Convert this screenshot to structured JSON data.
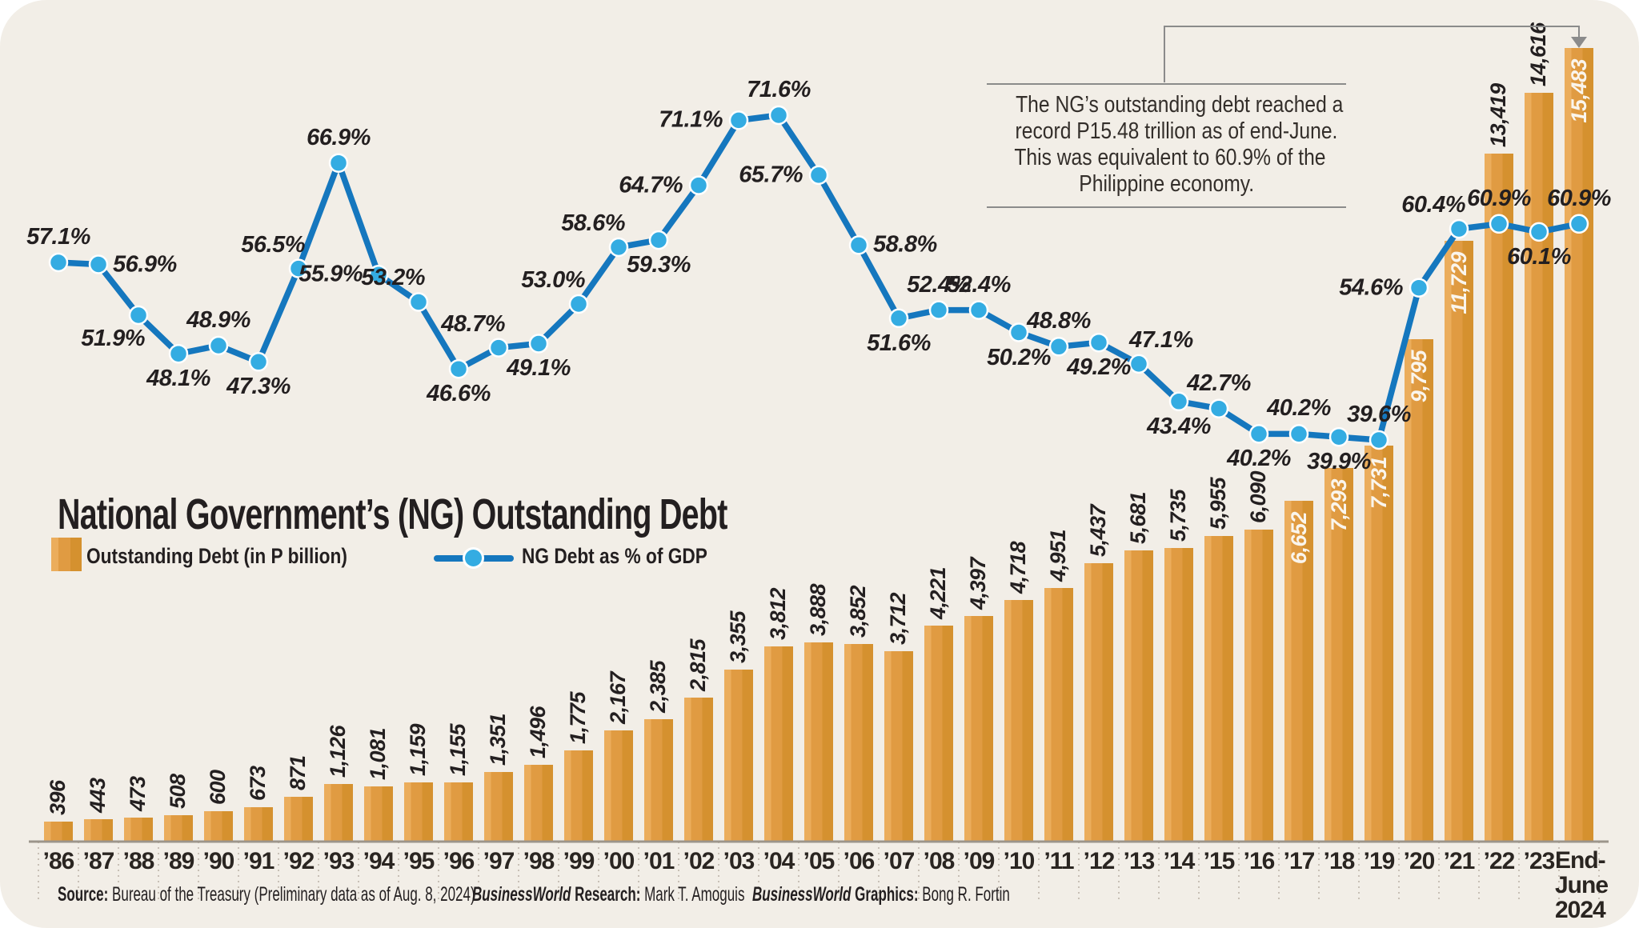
{
  "card": {
    "title": "National Government’s (NG) Outstanding Debt",
    "legend": {
      "bars": "Outstanding Debt (in P billion)",
      "line": "NG Debt as % of GDP"
    },
    "callout": {
      "lines": [
        "The NG’s outstanding debt reached a",
        "record P15.48 trillion as of end-June.",
        "This was equivalent to 60.9% of the",
        "Philippine economy."
      ]
    },
    "footer": {
      "source_label": "Source:",
      "source_text": " Bureau of the Treasury (Preliminary data as of Aug. 8, 2024)",
      "research_brand": "BusinessWorld",
      "research_label": " Research:",
      "research_name": " Mark T. Amoguis",
      "graphics_brand": "BusinessWorld",
      "graphics_label": " Graphics:",
      "graphics_name": " Bong R. Fortin"
    }
  },
  "chart_data": {
    "type": "bar+line",
    "title": "National Government’s (NG) Outstanding Debt",
    "categories": [
      "’86",
      "’87",
      "’88",
      "’89",
      "’90",
      "’91",
      "’92",
      "’93",
      "’94",
      "’95",
      "’96",
      "’97",
      "’98",
      "’99",
      "’00",
      "’01",
      "’02",
      "’03",
      "’04",
      "’05",
      "’06",
      "’07",
      "’08",
      "’09",
      "’10",
      "’11",
      "’12",
      "’13",
      "’14",
      "’15",
      "’16",
      "’17",
      "’18",
      "’19",
      "’20",
      "’21",
      "’22",
      "’23",
      "End-June 2024"
    ],
    "last_label_lines": [
      "End-",
      "June",
      "2024"
    ],
    "series": [
      {
        "name": "Outstanding Debt (in P billion)",
        "type": "bar",
        "values": [
          396,
          443,
          473,
          508,
          600,
          673,
          871,
          1126,
          1081,
          1159,
          1155,
          1351,
          1496,
          1775,
          2167,
          2385,
          2815,
          3355,
          3812,
          3888,
          3852,
          3712,
          4221,
          4397,
          4718,
          4951,
          5437,
          5681,
          5735,
          5955,
          6090,
          6652,
          7293,
          7731,
          9795,
          11729,
          13419,
          14616,
          15483
        ],
        "labels": [
          "396",
          "443",
          "473",
          "508",
          "600",
          "673",
          "871",
          "1,126",
          "1,081",
          "1,159",
          "1,155",
          "1,351",
          "1,496",
          "1,775",
          "2,167",
          "2,385",
          "2,815",
          "3,355",
          "3,812",
          "3,888",
          "3,852",
          "3,712",
          "4,221",
          "4,397",
          "4,718",
          "4,951",
          "5,437",
          "5,681",
          "5,735",
          "5,955",
          "6,090",
          "6,652",
          "7,293",
          "7,731",
          "9,795",
          "11,729",
          "13,419",
          "14,616",
          "15,483"
        ],
        "label_inside_white": [
          31,
          32,
          33,
          34,
          35,
          38
        ]
      },
      {
        "name": "NG Debt as % of GDP",
        "type": "line",
        "values": [
          57.1,
          56.9,
          51.9,
          48.1,
          48.9,
          47.3,
          56.5,
          66.9,
          55.9,
          53.2,
          46.6,
          48.7,
          49.1,
          53.0,
          58.6,
          59.3,
          64.7,
          71.1,
          71.6,
          65.7,
          58.8,
          51.6,
          52.4,
          52.4,
          50.2,
          48.8,
          49.2,
          47.1,
          43.4,
          42.7,
          40.2,
          40.2,
          39.9,
          39.6,
          54.6,
          60.4,
          60.9,
          60.1,
          60.9
        ],
        "labels": [
          "57.1%",
          "56.9%",
          "51.9%",
          "48.1%",
          "48.9%",
          "47.3%",
          "56.5%",
          "66.9%",
          "55.9%",
          "53.2%",
          "46.6%",
          "48.7%",
          "49.1%",
          "53.0%",
          "58.6%",
          "59.3%",
          "64.7%",
          "71.1%",
          "71.6%",
          "65.7%",
          "58.8%",
          "51.6%",
          "52.4%",
          "52.4%",
          "50.2%",
          "48.8%",
          "49.2%",
          "47.1%",
          "43.4%",
          "42.7%",
          "40.2%",
          "40.2%",
          "39.9%",
          "39.6%",
          "54.6%",
          "60.4%",
          "60.9%",
          "60.1%",
          "60.9%"
        ],
        "label_pos": [
          "above",
          "right",
          "below-left",
          "below",
          "above",
          "below",
          "above-left",
          "above",
          "left",
          "above-left",
          "below",
          "above-left",
          "below",
          "above-left",
          "above-left",
          "below",
          "left",
          "left",
          "above",
          "left",
          "right",
          "below",
          "above",
          "above",
          "below",
          "above",
          "below",
          "above-right",
          "below",
          "above",
          "below",
          "above",
          "below",
          "above",
          "left",
          "above-left",
          "above",
          "below",
          "above"
        ]
      }
    ],
    "colors": {
      "background": "#F2EEE7",
      "bar_light": "#EBAD5C",
      "bar_mid": "#E09B42",
      "bar_dark": "#D5912F",
      "line": "#1577BE",
      "dot": "#34ACE2",
      "text": "#231F20",
      "rule_gray": "#8B8B8B"
    },
    "legend_position": "top-left under title",
    "grid": "off",
    "bar_axis_visible": false
  }
}
